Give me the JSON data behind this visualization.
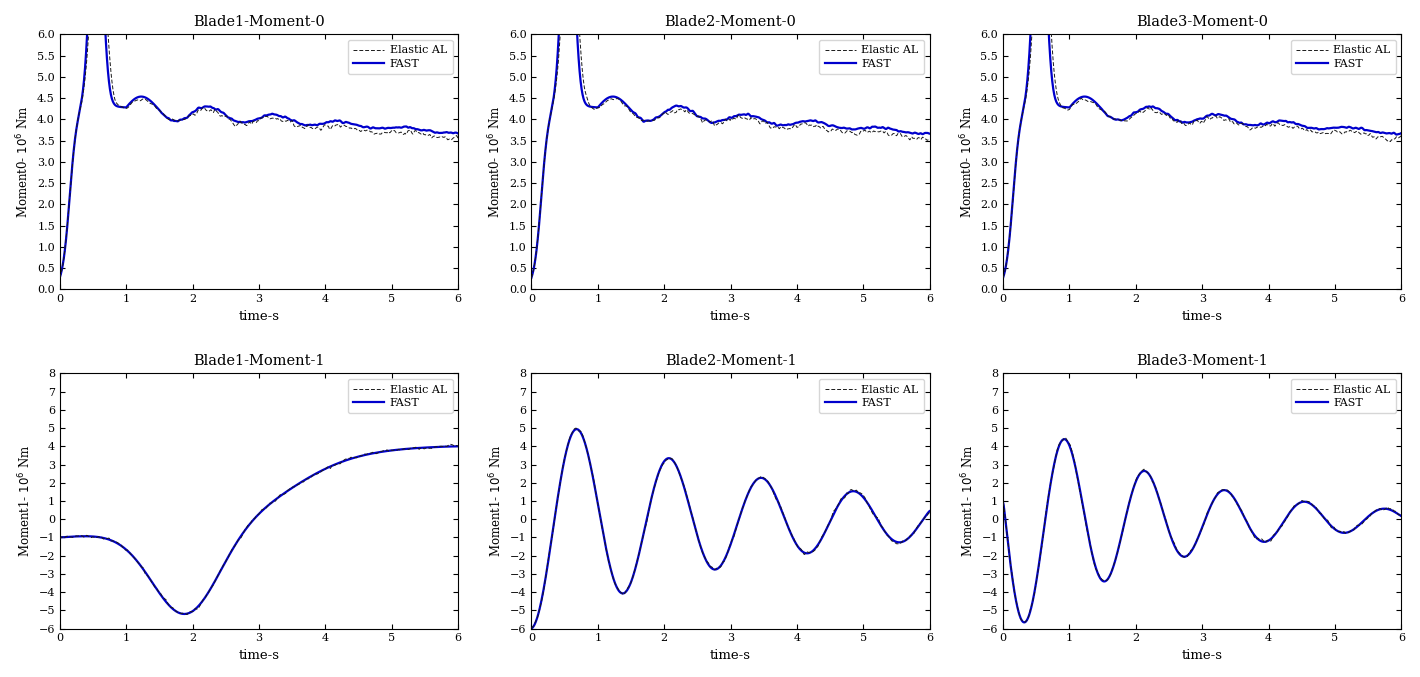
{
  "titles_row0": [
    "Blade1-Moment-0",
    "Blade2-Moment-0",
    "Blade3-Moment-0"
  ],
  "titles_row1": [
    "Blade1-Moment-1",
    "Blade2-Moment-1",
    "Blade3-Moment-1"
  ],
  "ylabel_row0": "Moment0- 10$^6$ Nm",
  "ylabel_row1": "Moment1- 10$^6$ Nm",
  "xlabel": "time-s",
  "legend_elastic": "Elastic AL",
  "legend_fast": "FAST",
  "elastic_color": "#1a1a1a",
  "fast_color": "#0000cc",
  "xlim": [
    0,
    6
  ],
  "ylim_row0": [
    0,
    6
  ],
  "ylim_row1": [
    -6,
    8
  ],
  "xticks": [
    0,
    1,
    2,
    3,
    4,
    5,
    6
  ],
  "yticks_row0": [
    0,
    0.5,
    1,
    1.5,
    2,
    2.5,
    3,
    3.5,
    4,
    4.5,
    5,
    5.5,
    6
  ],
  "yticks_row1": [
    -6,
    -5,
    -4,
    -3,
    -2,
    -1,
    0,
    1,
    2,
    3,
    4,
    5,
    6,
    7,
    8
  ],
  "n_points": 1200,
  "t_max": 6.0
}
